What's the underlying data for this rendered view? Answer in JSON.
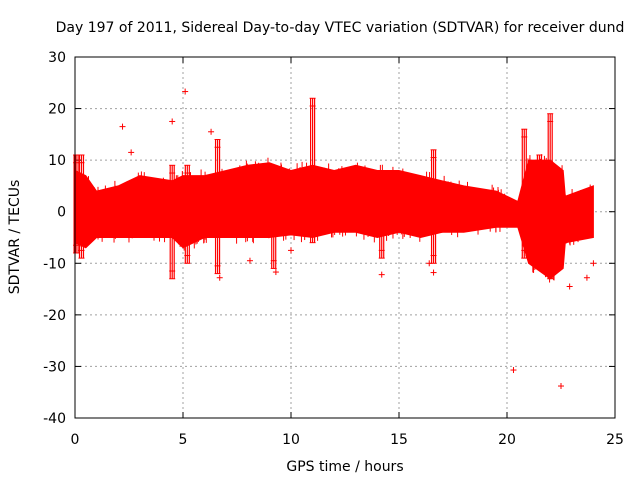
{
  "chart_data": {
    "type": "scatter",
    "title": "Day 197 of 2011, Sidereal Day-to-day VTEC variation (SDTVAR) for receiver dund",
    "xlabel": "GPS time / hours",
    "ylabel": "SDTVAR / TECUs",
    "xlim": [
      0,
      25
    ],
    "ylim": [
      -40,
      30
    ],
    "xticks": [
      "0",
      "5",
      "10",
      "15",
      "20",
      "25"
    ],
    "yticks": [
      "30",
      "20",
      "10",
      "0",
      "-10",
      "-20",
      "-30",
      "-40"
    ],
    "grid": true,
    "marker": "+",
    "color": "#ff0000",
    "series": [
      {
        "name": "SDTVAR",
        "envelope": [
          {
            "x": 0.0,
            "low": -6,
            "high": 8
          },
          {
            "x": 0.5,
            "low": -7,
            "high": 7
          },
          {
            "x": 1.0,
            "low": -5,
            "high": 4
          },
          {
            "x": 2.0,
            "low": -5,
            "high": 5
          },
          {
            "x": 3.0,
            "low": -5,
            "high": 7
          },
          {
            "x": 4.5,
            "low": -5,
            "high": 6
          },
          {
            "x": 5.0,
            "low": -7,
            "high": 7
          },
          {
            "x": 6.0,
            "low": -5,
            "high": 7
          },
          {
            "x": 7.0,
            "low": -5,
            "high": 8
          },
          {
            "x": 8.0,
            "low": -5,
            "high": 9
          },
          {
            "x": 9.0,
            "low": -5,
            "high": 9.5
          },
          {
            "x": 10.0,
            "low": -4.5,
            "high": 8
          },
          {
            "x": 11.0,
            "low": -5,
            "high": 9
          },
          {
            "x": 12.0,
            "low": -4,
            "high": 8
          },
          {
            "x": 13.0,
            "low": -4,
            "high": 9
          },
          {
            "x": 14.0,
            "low": -5,
            "high": 8
          },
          {
            "x": 15.0,
            "low": -4,
            "high": 8
          },
          {
            "x": 16.0,
            "low": -5,
            "high": 7
          },
          {
            "x": 17.0,
            "low": -4,
            "high": 6
          },
          {
            "x": 18.0,
            "low": -4,
            "high": 5
          },
          {
            "x": 19.5,
            "low": -3,
            "high": 4
          },
          {
            "x": 20.5,
            "low": -3,
            "high": 2
          },
          {
            "x": 21.0,
            "low": -10,
            "high": 10
          },
          {
            "x": 22.0,
            "low": -13,
            "high": 10
          },
          {
            "x": 22.6,
            "low": -11,
            "high": 8
          },
          {
            "x": 22.7,
            "low": -6,
            "high": 3
          },
          {
            "x": 24.0,
            "low": -5,
            "high": 5
          }
        ],
        "spikes": [
          {
            "x": 0.05,
            "low": -8,
            "high": 11
          },
          {
            "x": 0.3,
            "low": -9,
            "high": 11
          },
          {
            "x": 4.5,
            "low": -13,
            "high": 9
          },
          {
            "x": 5.2,
            "low": -10,
            "high": 9
          },
          {
            "x": 6.6,
            "low": -12,
            "high": 14
          },
          {
            "x": 9.2,
            "low": -11,
            "high": 5
          },
          {
            "x": 11.0,
            "low": -6,
            "high": 22
          },
          {
            "x": 14.2,
            "low": -9,
            "high": 4
          },
          {
            "x": 16.6,
            "low": -10,
            "high": 12
          },
          {
            "x": 20.8,
            "low": -9,
            "high": 16
          },
          {
            "x": 21.5,
            "low": -10,
            "high": 11
          },
          {
            "x": 22.0,
            "low": -13,
            "high": 19
          }
        ],
        "outliers": [
          {
            "x": 2.2,
            "y": 16.5
          },
          {
            "x": 2.6,
            "y": 11.5
          },
          {
            "x": 4.5,
            "y": 17.5
          },
          {
            "x": 5.1,
            "y": 23.3
          },
          {
            "x": 6.3,
            "y": 15.5
          },
          {
            "x": 6.7,
            "y": -12.8
          },
          {
            "x": 8.1,
            "y": -9.5
          },
          {
            "x": 9.3,
            "y": -11.7
          },
          {
            "x": 10.0,
            "y": -7.5
          },
          {
            "x": 14.2,
            "y": -12.2
          },
          {
            "x": 16.4,
            "y": -10
          },
          {
            "x": 16.6,
            "y": -11.8
          },
          {
            "x": 20.3,
            "y": -30.7
          },
          {
            "x": 22.5,
            "y": -33.8
          },
          {
            "x": 22.9,
            "y": -14.5
          },
          {
            "x": 23.7,
            "y": -12.8
          },
          {
            "x": 24.0,
            "y": -10
          }
        ]
      }
    ]
  }
}
